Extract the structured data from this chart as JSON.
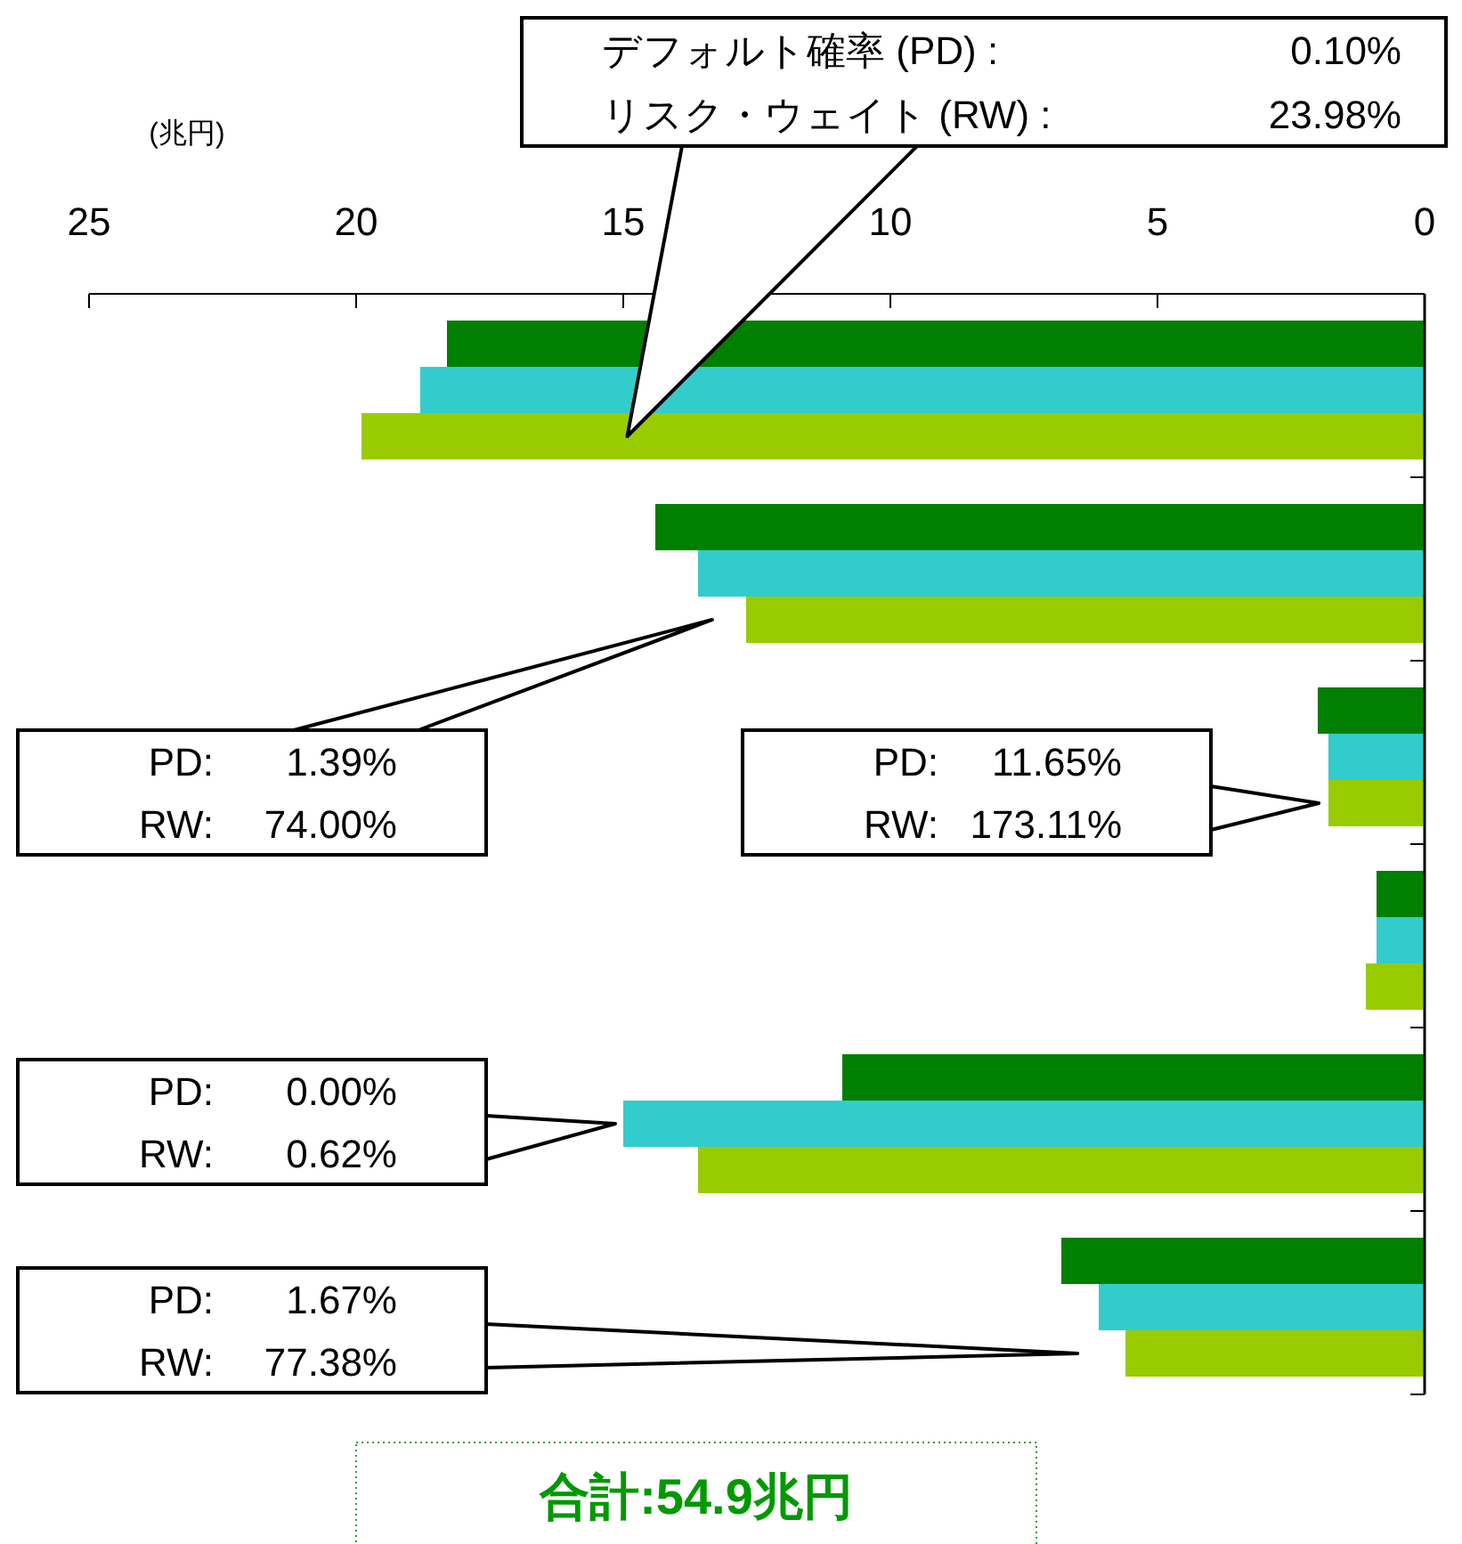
{
  "chart_data": {
    "type": "bar",
    "orientation": "horizontal",
    "xlabel": "(兆円)",
    "categories": [
      null,
      null,
      null,
      null,
      null,
      null
    ],
    "series": [
      {
        "color": "#007f00",
        "values": [
          18.3,
          14.4,
          2.0,
          0.9,
          10.9,
          6.8
        ]
      },
      {
        "color": "#33cccc",
        "values": [
          18.8,
          13.6,
          1.8,
          0.9,
          15.0,
          6.1
        ]
      },
      {
        "color": "#99cc00",
        "values": [
          19.9,
          12.7,
          1.8,
          1.1,
          13.6,
          5.6
        ]
      }
    ],
    "xlim": [
      25,
      0
    ],
    "xticks": [
      25,
      20,
      15,
      10,
      5,
      0
    ],
    "tick_labels": "x",
    "annotations": [
      "デフォルト確率 (PD) : 0.10%\nリスク・ウェイト (RW) : 23.98%",
      "PD: 1.39%\nRW: 74.00%",
      "PD: 11.65%\nRW: 173.11%",
      "PD: 0.00%\nRW: 0.62%",
      "PD: 1.67%\nRW: 77.38%",
      "合計:54.9兆円"
    ]
  }
}
